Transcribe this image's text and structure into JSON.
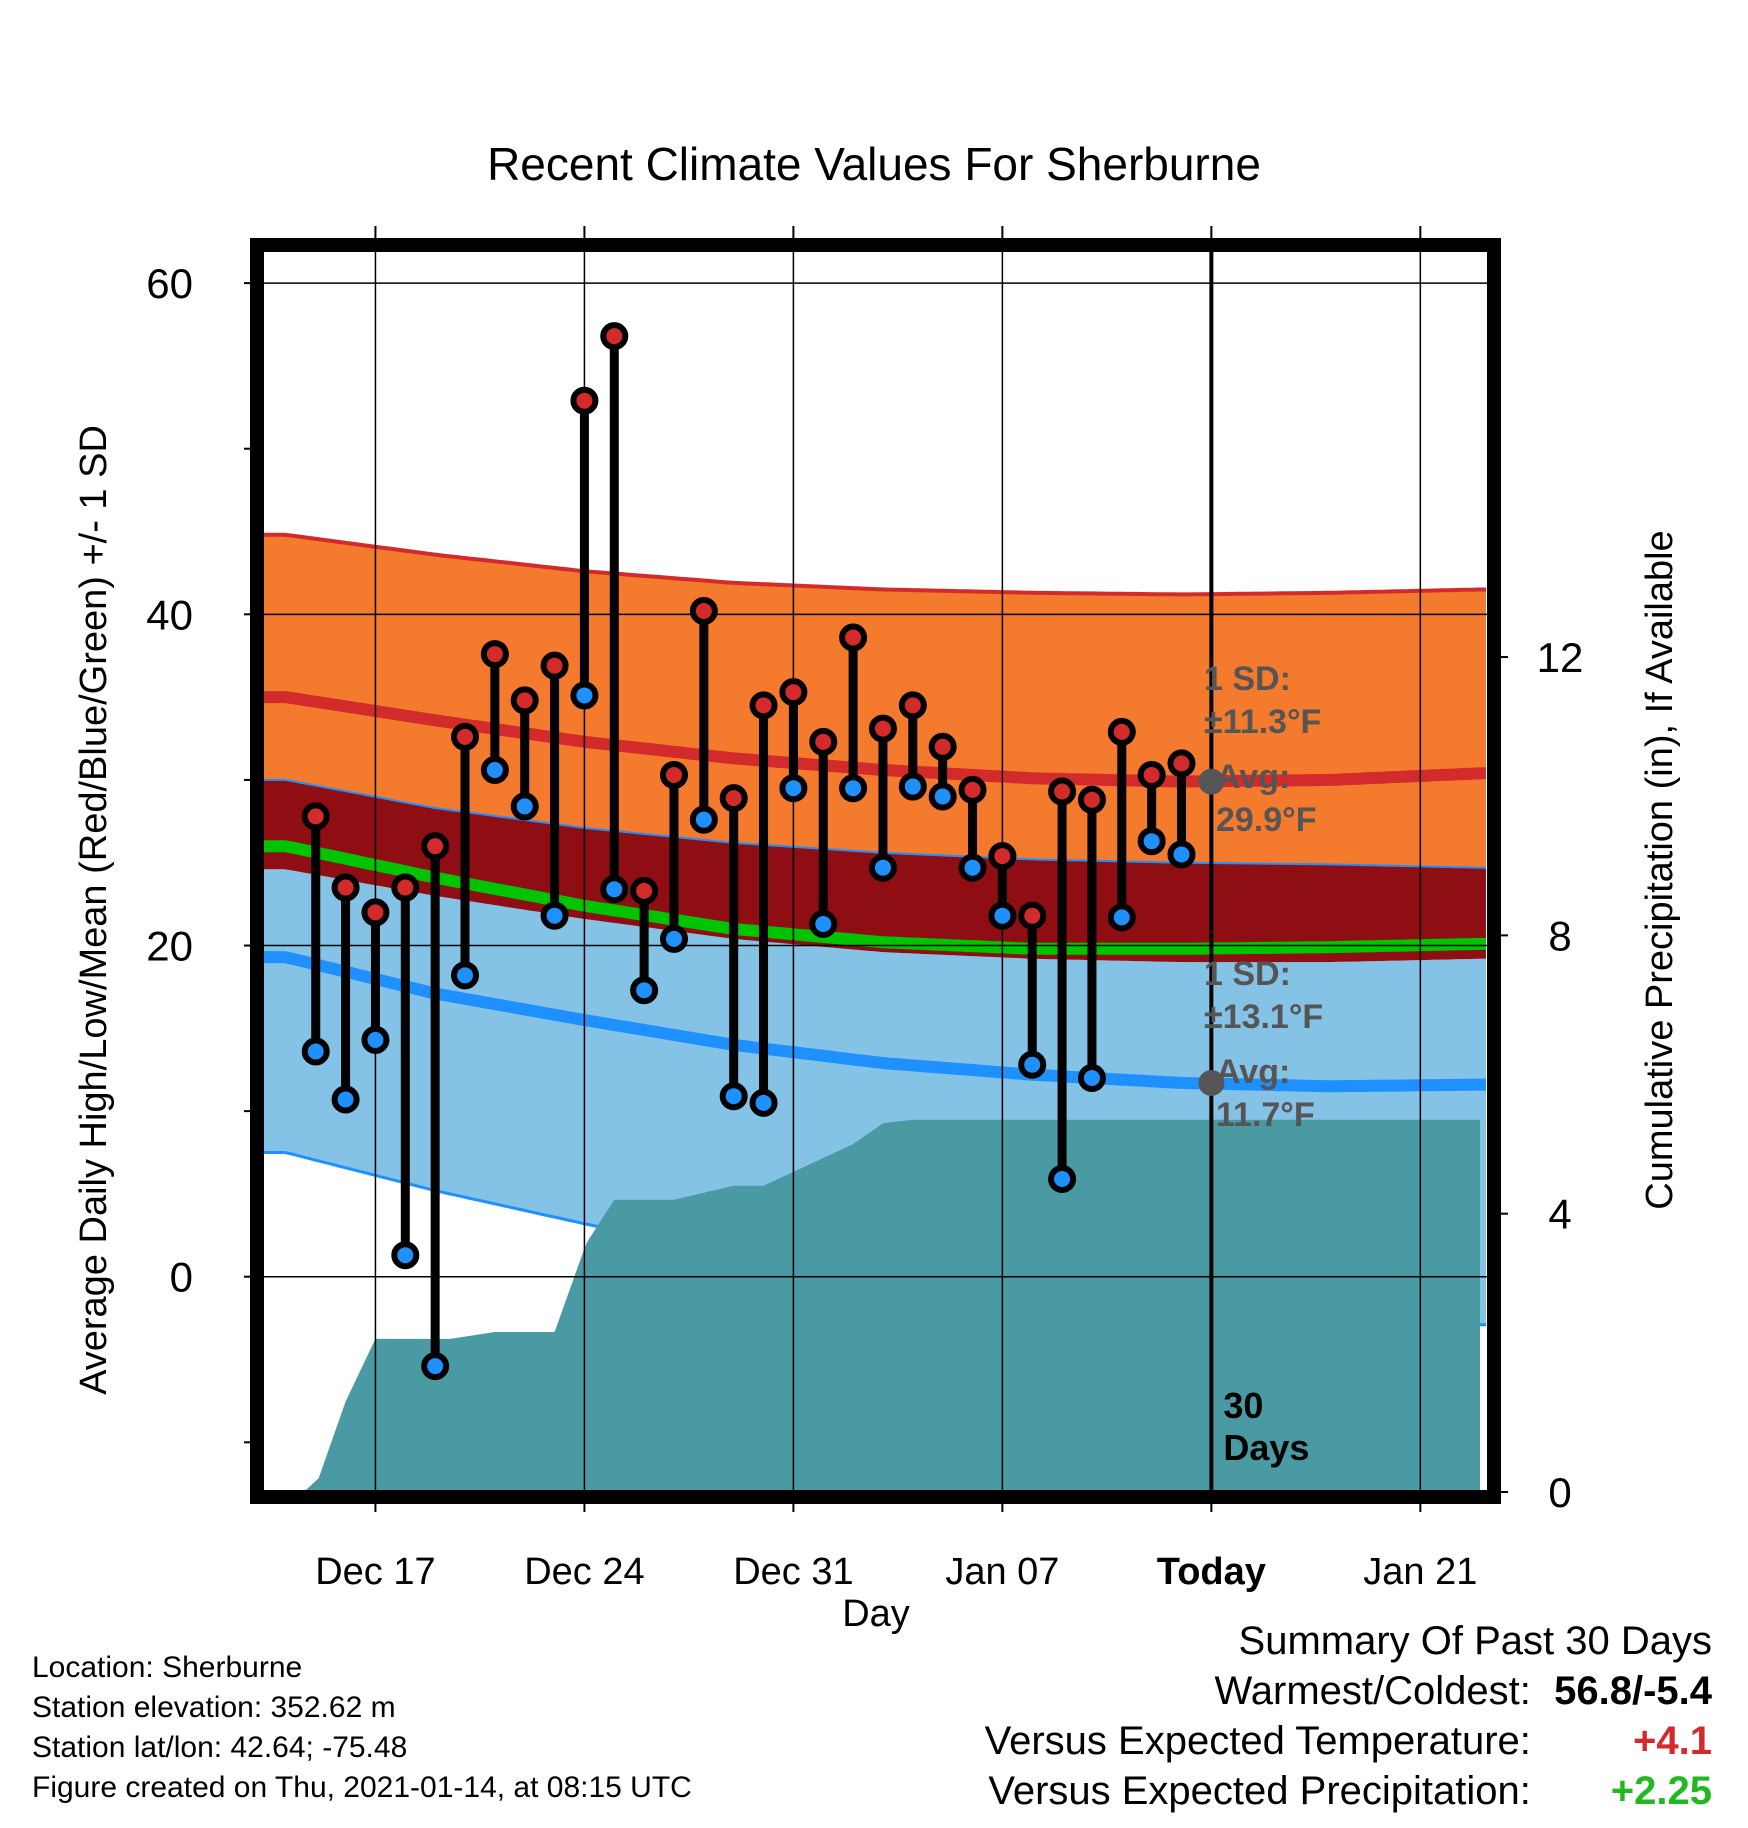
{
  "chart_data": {
    "type": "line",
    "title": "Recent Climate Values For Sherburne",
    "xlabel": "Day",
    "ylabel": "Average Daily High/Low/Mean (Red/Blue/Green) +/- 1 SD",
    "y2label": "Cumulative Precipitation (in), If Available",
    "x_tick_labels": [
      "Dec 17",
      "Dec 24",
      "Dec 31",
      "Jan 07",
      "Today",
      "Jan 21"
    ],
    "x_tick_days": [
      3,
      10,
      17,
      24,
      31,
      38
    ],
    "xlim": [
      -0.8,
      40.3
    ],
    "ylim": [
      -13,
      62
    ],
    "y_ticks": [
      0,
      20,
      40,
      60
    ],
    "y2lim": [
      0,
      17.85
    ],
    "y2_ticks": [
      0,
      4,
      8,
      12
    ],
    "grid": true,
    "today_day": 31,
    "today_label": "30\nDays",
    "normals": {
      "days": [
        0,
        5,
        10,
        15,
        20,
        25,
        30,
        35,
        40
      ],
      "high_avg": [
        35.0,
        33.6,
        32.3,
        31.3,
        30.6,
        30.1,
        29.9,
        30.0,
        30.4
      ],
      "high_upper": [
        44.8,
        43.6,
        42.6,
        41.9,
        41.5,
        41.3,
        41.2,
        41.3,
        41.5
      ],
      "high_lower": [
        30.0,
        28.3,
        27.1,
        26.2,
        25.6,
        25.2,
        25.0,
        24.9,
        24.7
      ],
      "mean_avg": [
        26.0,
        24.1,
        22.4,
        21.0,
        20.2,
        19.8,
        19.8,
        19.9,
        20.1
      ],
      "low_avg": [
        19.3,
        17.1,
        15.5,
        14.0,
        12.9,
        12.2,
        11.7,
        11.5,
        11.6
      ],
      "low_upper": [
        24.6,
        23.0,
        21.6,
        20.4,
        19.6,
        19.2,
        19.0,
        19.0,
        19.2
      ],
      "low_lower": [
        7.5,
        5.2,
        3.2,
        1.3,
        -0.3,
        -1.4,
        -2.2,
        -2.7,
        -2.9
      ]
    },
    "series": [
      {
        "name": "High",
        "days": [
          1,
          2,
          3,
          4,
          5,
          6,
          7,
          8,
          9,
          10,
          11,
          12,
          13,
          14,
          15,
          16,
          17,
          18,
          19,
          20,
          21,
          22,
          23,
          24,
          25,
          26,
          27,
          28,
          29,
          30
        ],
        "values": [
          27.8,
          23.5,
          22.0,
          23.5,
          26.0,
          32.6,
          37.6,
          34.8,
          36.9,
          52.9,
          56.8,
          23.3,
          30.3,
          40.2,
          28.9,
          34.5,
          35.3,
          32.3,
          38.6,
          33.1,
          34.5,
          32.0,
          29.4,
          25.4,
          21.8,
          29.3,
          28.8,
          32.9,
          30.3,
          31.0
        ]
      },
      {
        "name": "Low",
        "days": [
          1,
          2,
          3,
          4,
          5,
          6,
          7,
          8,
          9,
          10,
          11,
          12,
          13,
          14,
          15,
          16,
          17,
          18,
          19,
          20,
          21,
          22,
          23,
          24,
          25,
          26,
          27,
          28,
          29,
          30
        ],
        "values": [
          13.6,
          10.7,
          14.3,
          1.3,
          -5.4,
          18.2,
          30.6,
          28.4,
          21.8,
          35.1,
          23.4,
          17.3,
          20.4,
          27.6,
          10.9,
          10.5,
          29.5,
          21.3,
          29.5,
          24.7,
          29.6,
          29.0,
          24.7,
          21.8,
          12.8,
          5.9,
          12.0,
          21.7,
          26.3,
          25.5
        ]
      }
    ],
    "precipitation": {
      "days": [
        -0.2,
        0.6,
        1.1,
        2,
        3.0,
        4,
        5.5,
        7,
        8,
        9,
        10,
        10.1,
        11,
        12,
        13,
        14,
        15,
        16,
        17,
        18,
        19,
        20,
        21,
        40
      ],
      "values": [
        0.0,
        0.0,
        0.2,
        1.3,
        2.2,
        2.2,
        2.2,
        2.3,
        2.3,
        2.3,
        3.5,
        3.6,
        4.2,
        4.2,
        4.2,
        4.3,
        4.4,
        4.4,
        4.6,
        4.8,
        5.0,
        5.3,
        5.35,
        5.35
      ]
    },
    "annotations": {
      "high_sd": "1 SD:",
      "high_sd_value": "±11.3°F",
      "high_avg": "Avg:",
      "high_avg_value": "29.9°F",
      "low_sd": "1 SD:",
      "low_sd_value": "±13.1°F",
      "low_avg": "Avg:",
      "low_avg_value": "11.7°F"
    },
    "colors": {
      "high": "#d32b2b",
      "low": "#1f90ff",
      "mean": "#00c400",
      "high_band": "#f47a2e",
      "overlap_band": "#8e0e14",
      "low_band": "#84c2e6",
      "precip": "#4a9aa3",
      "annotation": "#555555"
    }
  },
  "footer": {
    "location": "Location: Sherburne",
    "elevation": "Station elevation: 352.62 m",
    "latlon": "Station lat/lon: 42.64; -75.48",
    "created": "Figure created on Thu, 2021-01-14, at 08:15 UTC"
  },
  "summary": {
    "title": "Summary Of Past 30 Days",
    "warm_cold_label": "Warmest/Coldest:",
    "warm_cold_value": "56.8/-5.4",
    "temp_label": "Versus Expected Temperature:",
    "temp_value": "+4.1",
    "temp_color": "#d32b2b",
    "precip_label": "Versus Expected Precipitation:",
    "precip_value": "+2.25",
    "precip_color": "#22b822"
  }
}
